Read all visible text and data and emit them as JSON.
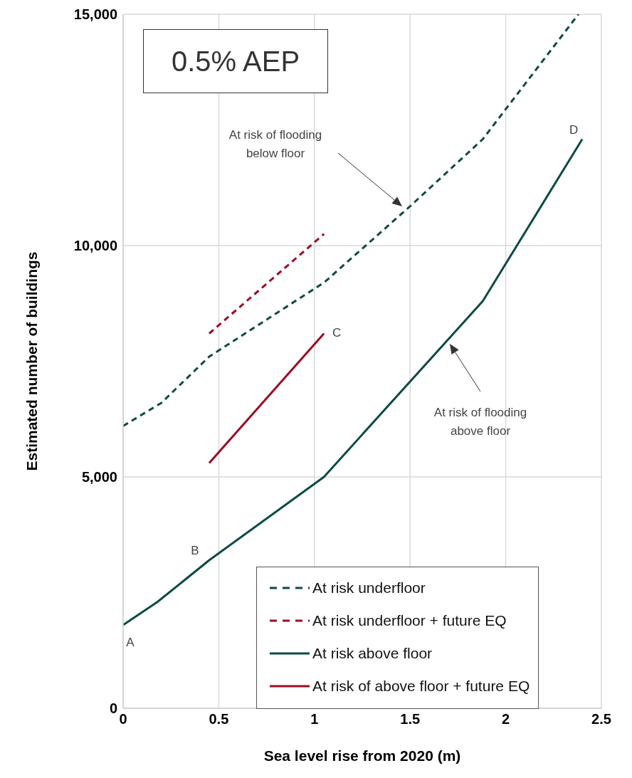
{
  "chart_data": {
    "type": "line",
    "xlabel": "Sea level rise from 2020 (m)",
    "ylabel": "Estimated number of buildings",
    "xlim": [
      0,
      2.5
    ],
    "xticks": [
      0,
      0.5,
      1,
      1.5,
      2,
      2.5
    ],
    "ylim": [
      0,
      15000
    ],
    "yticks": [
      0,
      {
        "value": 5000,
        "label": "5,000"
      },
      {
        "value": 10000,
        "label": "10,000"
      },
      {
        "value": 15000,
        "label": "15,000"
      }
    ],
    "grid": true,
    "legend": "bottom right",
    "series": [
      {
        "name": "At risk underfloor",
        "color": "#0d4a44",
        "line_style": "dashed",
        "x": [
          0,
          0.2,
          0.45,
          1.05,
          1.5,
          1.88,
          2.38
        ],
        "values": [
          6100,
          6600,
          7600,
          9200,
          10850,
          12300,
          15000
        ]
      },
      {
        "name": "At risk underfloor + future EQ",
        "color": "#9b0d24",
        "line_style": "dashed",
        "x": [
          0.45,
          1.05
        ],
        "values": [
          8100,
          10250
        ]
      },
      {
        "name": "At risk above floor",
        "color": "#0d4a44",
        "line_style": "solid",
        "x": [
          0,
          0.18,
          0.45,
          1.05,
          1.88,
          2.4
        ],
        "values": [
          1800,
          2300,
          3200,
          5000,
          8800,
          12300
        ]
      },
      {
        "name": "At risk of above floor + future EQ",
        "color": "#9b0d24",
        "line_style": "solid",
        "x": [
          0.45,
          1.05
        ],
        "values": [
          5300,
          8100
        ]
      }
    ],
    "annotations": [
      "0.5% AEP",
      {
        "text": "A",
        "x": 0,
        "y": 1800
      },
      {
        "text": "B",
        "x": 0.45,
        "y": 3200
      },
      {
        "text": "C",
        "x": 1.05,
        "y": 8100
      },
      {
        "text": "D",
        "x": 2.4,
        "y": 12300
      },
      "At risk of flooding below floor",
      "At risk of flooding above floor"
    ]
  }
}
